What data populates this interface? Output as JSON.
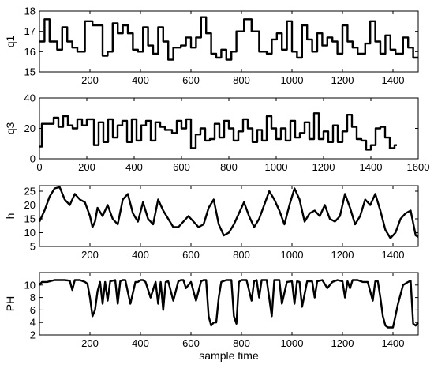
{
  "chart_data": [
    {
      "type": "line",
      "ylabel": "q1",
      "xlabel": "",
      "xlim": [
        0,
        1500
      ],
      "ylim": [
        15,
        18
      ],
      "xticks": [
        "200",
        "400",
        "600",
        "800",
        "1000",
        "1200",
        "1400"
      ],
      "xtick_values": [
        200,
        400,
        600,
        800,
        1000,
        1200,
        1400
      ],
      "yticks": [
        "15",
        "16",
        "17",
        "18"
      ],
      "ytick_values": [
        15,
        16,
        17,
        18
      ],
      "step": true,
      "x": [
        0,
        20,
        40,
        70,
        90,
        110,
        130,
        150,
        180,
        210,
        250,
        270,
        290,
        310,
        330,
        350,
        370,
        390,
        410,
        430,
        450,
        470,
        490,
        510,
        530,
        560,
        580,
        600,
        620,
        640,
        660,
        680,
        700,
        720,
        740,
        760,
        780,
        810,
        840,
        870,
        900,
        920,
        940,
        960,
        980,
        1000,
        1020,
        1040,
        1060,
        1080,
        1100,
        1120,
        1140,
        1160,
        1180,
        1200,
        1220,
        1240,
        1260,
        1290,
        1310,
        1330,
        1350,
        1370,
        1390,
        1410,
        1440,
        1460,
        1480,
        1500
      ],
      "values": [
        16.5,
        17.6,
        16.5,
        16.1,
        17.2,
        16.5,
        16.2,
        16.0,
        17.5,
        17.3,
        15.8,
        16.0,
        17.4,
        16.9,
        17.3,
        16.9,
        16.1,
        16.0,
        17.2,
        16.3,
        15.9,
        17.2,
        16.5,
        15.6,
        16.2,
        16.3,
        16.7,
        16.2,
        16.7,
        17.7,
        16.9,
        15.9,
        15.7,
        16.1,
        15.6,
        16.0,
        17.0,
        17.6,
        17.0,
        16.0,
        15.9,
        16.6,
        16.9,
        16.1,
        17.5,
        16.0,
        15.7,
        17.3,
        16.6,
        16.0,
        16.9,
        16.3,
        16.7,
        16.5,
        15.9,
        17.3,
        16.5,
        16.2,
        15.9,
        16.4,
        17.5,
        16.5,
        15.9,
        16.8,
        16.1,
        15.9,
        16.7,
        16.2,
        15.7,
        15.7
      ]
    },
    {
      "type": "line",
      "ylabel": "q3",
      "xlabel": "",
      "xlim": [
        0,
        1600
      ],
      "ylim": [
        0,
        40
      ],
      "xticks": [
        "0",
        "200",
        "400",
        "600",
        "800",
        "1000",
        "1200",
        "1400",
        "1600"
      ],
      "xtick_values": [
        0,
        200,
        400,
        600,
        800,
        1000,
        1200,
        1400,
        1600
      ],
      "yticks": [
        "0",
        "20",
        "40"
      ],
      "ytick_values": [
        0,
        20,
        40
      ],
      "step": true,
      "x": [
        0,
        10,
        30,
        60,
        80,
        100,
        120,
        140,
        160,
        180,
        200,
        230,
        250,
        270,
        290,
        310,
        330,
        350,
        370,
        390,
        410,
        430,
        450,
        470,
        490,
        510,
        530,
        560,
        580,
        600,
        620,
        640,
        660,
        680,
        700,
        720,
        740,
        760,
        780,
        800,
        820,
        840,
        860,
        880,
        900,
        920,
        940,
        960,
        980,
        1000,
        1020,
        1040,
        1060,
        1080,
        1100,
        1120,
        1140,
        1160,
        1180,
        1200,
        1220,
        1240,
        1260,
        1280,
        1300,
        1320,
        1340,
        1360,
        1380,
        1400,
        1420,
        1440,
        1460,
        1480,
        1500
      ],
      "values": [
        8,
        23,
        23,
        27,
        21,
        28,
        22,
        20,
        26,
        22,
        26,
        9,
        24,
        11,
        26,
        14,
        22,
        25,
        11,
        26,
        12,
        22,
        25,
        12,
        24,
        21,
        19,
        17,
        25,
        20,
        26,
        7,
        16,
        20,
        12,
        13,
        23,
        14,
        25,
        20,
        12,
        18,
        26,
        20,
        11,
        19,
        12,
        28,
        20,
        13,
        20,
        12,
        25,
        14,
        17,
        24,
        13,
        30,
        13,
        18,
        11,
        22,
        11,
        18,
        29,
        21,
        13,
        12,
        6,
        9,
        20,
        21,
        14,
        7,
        9
      ]
    },
    {
      "type": "line",
      "ylabel": "h",
      "xlabel": "",
      "xlim": [
        0,
        1500
      ],
      "ylim": [
        5,
        27
      ],
      "xticks": [
        "200",
        "400",
        "600",
        "800",
        "1000",
        "1200",
        "1400"
      ],
      "xtick_values": [
        200,
        400,
        600,
        800,
        1000,
        1200,
        1400
      ],
      "yticks": [
        "5",
        "10",
        "15",
        "20",
        "25"
      ],
      "ytick_values": [
        5,
        10,
        15,
        20,
        25
      ],
      "step": false,
      "x": [
        0,
        20,
        40,
        60,
        80,
        100,
        120,
        140,
        160,
        180,
        200,
        210,
        220,
        230,
        250,
        270,
        290,
        310,
        330,
        350,
        370,
        390,
        410,
        430,
        450,
        470,
        490,
        510,
        530,
        550,
        570,
        590,
        610,
        630,
        650,
        670,
        690,
        710,
        730,
        750,
        770,
        790,
        810,
        830,
        850,
        870,
        890,
        910,
        930,
        950,
        970,
        990,
        1010,
        1030,
        1050,
        1070,
        1090,
        1110,
        1130,
        1150,
        1170,
        1190,
        1210,
        1230,
        1250,
        1270,
        1290,
        1310,
        1330,
        1350,
        1370,
        1390,
        1410,
        1430,
        1450,
        1470,
        1490,
        1500
      ],
      "values": [
        14,
        18,
        23,
        26,
        26.5,
        22,
        20,
        24,
        22,
        21,
        16,
        12,
        14,
        19,
        16,
        20,
        15,
        13,
        22,
        24,
        17,
        14,
        21,
        15,
        13,
        22,
        18,
        15,
        12,
        12,
        14,
        16,
        14,
        12,
        13,
        19,
        22,
        13,
        9,
        10,
        13,
        17,
        21,
        16,
        12,
        15,
        20,
        25,
        22,
        18,
        13,
        20,
        26,
        22,
        14,
        17,
        18,
        16,
        20,
        15,
        14,
        16,
        24,
        19,
        13,
        16,
        22,
        20,
        24,
        18,
        11,
        8,
        10,
        15,
        17,
        18,
        9,
        8.5
      ]
    },
    {
      "type": "line",
      "ylabel": "PH",
      "xlabel": "sample time",
      "xlim": [
        0,
        1500
      ],
      "ylim": [
        2,
        12
      ],
      "xticks": [
        "200",
        "400",
        "600",
        "800",
        "1000",
        "1200",
        "1400"
      ],
      "xtick_values": [
        200,
        400,
        600,
        800,
        1000,
        1200,
        1400
      ],
      "yticks": [
        "2",
        "4",
        "6",
        "8",
        "10"
      ],
      "ytick_values": [
        2,
        4,
        6,
        8,
        10
      ],
      "step": false,
      "x": [
        0,
        10,
        30,
        60,
        100,
        120,
        130,
        140,
        160,
        180,
        190,
        200,
        210,
        220,
        230,
        240,
        250,
        260,
        270,
        280,
        300,
        310,
        320,
        330,
        340,
        360,
        380,
        390,
        400,
        410,
        420,
        440,
        460,
        470,
        480,
        490,
        500,
        510,
        530,
        550,
        560,
        570,
        580,
        600,
        620,
        640,
        650,
        660,
        670,
        680,
        690,
        700,
        710,
        720,
        740,
        760,
        770,
        780,
        790,
        800,
        820,
        840,
        850,
        860,
        870,
        880,
        900,
        920,
        930,
        940,
        950,
        960,
        980,
        1000,
        1010,
        1020,
        1030,
        1040,
        1060,
        1080,
        1090,
        1100,
        1120,
        1140,
        1160,
        1180,
        1200,
        1210,
        1220,
        1230,
        1240,
        1260,
        1280,
        1300,
        1320,
        1330,
        1340,
        1350,
        1360,
        1370,
        1380,
        1390,
        1400,
        1420,
        1440,
        1460,
        1470,
        1480,
        1490,
        1500
      ],
      "values": [
        10,
        10.5,
        10.5,
        10.8,
        10.8,
        10.7,
        9.2,
        10.8,
        10.8,
        10.5,
        10.2,
        8,
        5,
        6,
        9,
        10.5,
        7,
        10.5,
        7.5,
        10.6,
        10.8,
        7,
        10.6,
        10.8,
        10.8,
        7,
        10.5,
        10.5,
        10.8,
        10.8,
        10.5,
        8,
        10.5,
        7,
        10.5,
        6,
        10.5,
        10.6,
        7.5,
        10.6,
        10.8,
        10.8,
        9.5,
        10.5,
        7.5,
        10.6,
        10.8,
        10.8,
        5,
        3.5,
        4,
        4,
        8,
        10.5,
        10.8,
        10.8,
        5,
        3.8,
        10.5,
        10.8,
        10.8,
        7.5,
        10.6,
        10.8,
        8,
        10.8,
        10.8,
        5,
        10.8,
        10.8,
        10.8,
        7,
        10.5,
        10.6,
        7,
        10.6,
        10.5,
        6.5,
        10.6,
        10.6,
        8,
        10.6,
        10.8,
        9.5,
        10.5,
        10.8,
        10.6,
        8,
        10.6,
        9.5,
        10.8,
        10.8,
        10.5,
        10.5,
        7.5,
        10.6,
        10.6,
        8,
        5,
        3.5,
        3.2,
        3.2,
        3.2,
        7,
        10,
        10.5,
        10.7,
        3.8,
        3.5,
        4
      ]
    }
  ]
}
